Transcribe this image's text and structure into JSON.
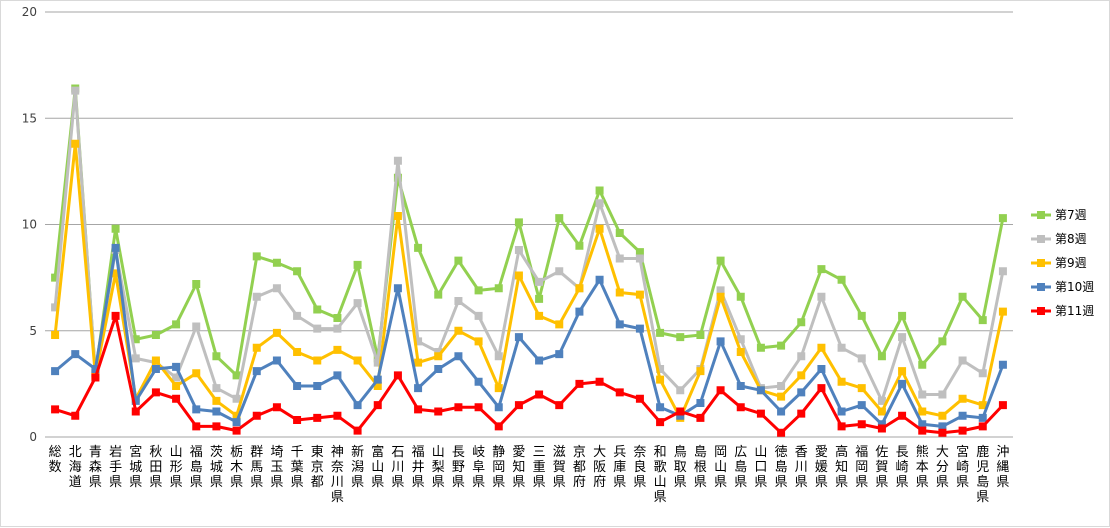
{
  "chart_data": {
    "type": "line",
    "title": "",
    "xlabel": "",
    "ylabel": "",
    "ylim": [
      0,
      20
    ],
    "yticks": [
      0,
      5,
      10,
      15,
      20
    ],
    "grid": true,
    "legend_position": "right",
    "categories": [
      "総数",
      "北海道",
      "青森県",
      "岩手県",
      "宮城県",
      "秋田県",
      "山形県",
      "福島県",
      "茨城県",
      "栃木県",
      "群馬県",
      "埼玉県",
      "千葉県",
      "東京都",
      "神奈川県",
      "新潟県",
      "富山県",
      "石川県",
      "福井県",
      "山梨県",
      "長野県",
      "岐阜県",
      "静岡県",
      "愛知県",
      "三重県",
      "滋賀県",
      "京都府",
      "大阪府",
      "兵庫県",
      "奈良県",
      "和歌山県",
      "鳥取県",
      "島根県",
      "岡山県",
      "広島県",
      "山口県",
      "徳島県",
      "香川県",
      "愛媛県",
      "高知県",
      "福岡県",
      "佐賀県",
      "長崎県",
      "熊本県",
      "大分県",
      "宮崎県",
      "鹿児島県",
      "沖縄県"
    ],
    "series": [
      {
        "name": "第7週",
        "color": "#92d050",
        "values": [
          7.5,
          16.4,
          3.0,
          9.8,
          4.6,
          4.8,
          5.3,
          7.2,
          3.8,
          2.9,
          8.5,
          8.2,
          7.8,
          6.0,
          5.6,
          8.1,
          3.7,
          12.2,
          8.9,
          6.7,
          8.3,
          6.9,
          7.0,
          10.1,
          6.5,
          10.3,
          9.0,
          11.6,
          9.6,
          8.7,
          4.9,
          4.7,
          4.8,
          8.3,
          6.6,
          4.2,
          4.3,
          5.4,
          7.9,
          7.4,
          5.7,
          3.8,
          5.7,
          3.4,
          4.5,
          6.6,
          5.5,
          10.3
        ]
      },
      {
        "name": "第8週",
        "color": "#bfbfbf",
        "values": [
          6.1,
          16.3,
          3.0,
          8.8,
          3.7,
          3.5,
          2.8,
          5.2,
          2.3,
          1.8,
          6.6,
          7.0,
          5.7,
          5.1,
          5.1,
          6.3,
          3.5,
          13.0,
          4.5,
          4.0,
          6.4,
          5.7,
          3.8,
          8.8,
          7.3,
          7.8,
          7.0,
          11.0,
          8.4,
          8.4,
          3.2,
          2.2,
          3.2,
          6.9,
          4.6,
          2.3,
          2.4,
          3.8,
          6.6,
          4.2,
          3.7,
          1.7,
          4.7,
          2.0,
          2.0,
          3.6,
          3.0,
          7.8
        ]
      },
      {
        "name": "第9週",
        "color": "#ffc000",
        "values": [
          4.8,
          13.8,
          2.9,
          7.7,
          1.8,
          3.6,
          2.4,
          3.0,
          1.7,
          1.0,
          4.2,
          4.9,
          4.0,
          3.6,
          4.1,
          3.6,
          2.4,
          10.4,
          3.5,
          3.8,
          5.0,
          4.5,
          2.3,
          7.6,
          5.7,
          5.3,
          7.0,
          9.8,
          6.8,
          6.7,
          2.7,
          0.9,
          3.1,
          6.6,
          4.0,
          2.2,
          1.9,
          2.9,
          4.2,
          2.6,
          2.3,
          1.2,
          3.1,
          1.2,
          1.0,
          1.8,
          1.5,
          5.9
        ]
      },
      {
        "name": "第10週",
        "color": "#4f81bd",
        "values": [
          3.1,
          3.9,
          3.2,
          8.9,
          1.7,
          3.2,
          3.3,
          1.3,
          1.2,
          0.7,
          3.1,
          3.6,
          2.4,
          2.4,
          2.9,
          1.5,
          2.7,
          7.0,
          2.3,
          3.2,
          3.8,
          2.6,
          1.4,
          4.7,
          3.6,
          3.9,
          5.9,
          7.4,
          5.3,
          5.1,
          1.4,
          1.0,
          1.6,
          4.5,
          2.4,
          2.2,
          1.2,
          2.1,
          3.2,
          1.2,
          1.5,
          0.6,
          2.5,
          0.6,
          0.5,
          1.0,
          0.9,
          3.4
        ]
      },
      {
        "name": "第11週",
        "color": "#ff0000",
        "values": [
          1.3,
          1.0,
          2.8,
          5.7,
          1.2,
          2.1,
          1.8,
          0.5,
          0.5,
          0.3,
          1.0,
          1.4,
          0.8,
          0.9,
          1.0,
          0.3,
          1.5,
          2.9,
          1.3,
          1.2,
          1.4,
          1.4,
          0.5,
          1.5,
          2.0,
          1.5,
          2.5,
          2.6,
          2.1,
          1.8,
          0.7,
          1.2,
          0.9,
          2.2,
          1.4,
          1.1,
          0.2,
          1.1,
          2.3,
          0.5,
          0.6,
          0.4,
          1.0,
          0.3,
          0.2,
          0.3,
          0.5,
          1.5
        ]
      }
    ]
  }
}
